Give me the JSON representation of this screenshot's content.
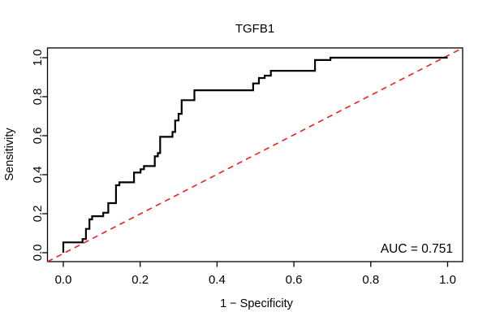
{
  "window": {
    "background": "#ffffff"
  },
  "chart_data": {
    "type": "line",
    "subtype": "roc_step_curve",
    "title": "TGFB1",
    "xlabel": "1 − Specificity",
    "ylabel": "Sensitivity",
    "xlim": [
      0,
      1
    ],
    "ylim": [
      0,
      1
    ],
    "xtick_labels": [
      "0.0",
      "0.2",
      "0.4",
      "0.6",
      "0.8",
      "1.0"
    ],
    "ytick_labels": [
      "0.0",
      "0.2",
      "0.4",
      "0.6",
      "0.8",
      "1.0"
    ],
    "grid": false,
    "legend": "none",
    "annotation": {
      "text": "AUC = 0.751",
      "corner": "bottom-right"
    },
    "auc": 0.751,
    "colors": {
      "curve": "#000000",
      "reference": "#EE2020",
      "box": "#000000",
      "text": "#000000"
    },
    "reference_line": {
      "style": "dashed",
      "from": [
        0,
        0
      ],
      "to": [
        1,
        1
      ]
    },
    "series": [
      {
        "name": "ROC curve",
        "style": "solid",
        "points": [
          [
            0.0,
            0.0
          ],
          [
            0.0,
            0.053
          ],
          [
            0.05,
            0.053
          ],
          [
            0.05,
            0.07
          ],
          [
            0.059,
            0.07
          ],
          [
            0.059,
            0.122
          ],
          [
            0.068,
            0.122
          ],
          [
            0.068,
            0.171
          ],
          [
            0.075,
            0.171
          ],
          [
            0.075,
            0.187
          ],
          [
            0.104,
            0.187
          ],
          [
            0.104,
            0.205
          ],
          [
            0.117,
            0.205
          ],
          [
            0.117,
            0.254
          ],
          [
            0.137,
            0.254
          ],
          [
            0.137,
            0.346
          ],
          [
            0.146,
            0.346
          ],
          [
            0.146,
            0.361
          ],
          [
            0.184,
            0.361
          ],
          [
            0.184,
            0.411
          ],
          [
            0.201,
            0.411
          ],
          [
            0.201,
            0.428
          ],
          [
            0.21,
            0.428
          ],
          [
            0.21,
            0.444
          ],
          [
            0.238,
            0.444
          ],
          [
            0.238,
            0.494
          ],
          [
            0.246,
            0.494
          ],
          [
            0.246,
            0.511
          ],
          [
            0.252,
            0.511
          ],
          [
            0.252,
            0.594
          ],
          [
            0.284,
            0.594
          ],
          [
            0.284,
            0.619
          ],
          [
            0.291,
            0.619
          ],
          [
            0.291,
            0.678
          ],
          [
            0.3,
            0.678
          ],
          [
            0.3,
            0.712
          ],
          [
            0.308,
            0.712
          ],
          [
            0.308,
            0.782
          ],
          [
            0.341,
            0.782
          ],
          [
            0.341,
            0.833
          ],
          [
            0.494,
            0.833
          ],
          [
            0.494,
            0.868
          ],
          [
            0.509,
            0.868
          ],
          [
            0.509,
            0.896
          ],
          [
            0.524,
            0.896
          ],
          [
            0.524,
            0.908
          ],
          [
            0.54,
            0.908
          ],
          [
            0.54,
            0.933
          ],
          [
            0.655,
            0.933
          ],
          [
            0.655,
            0.988
          ],
          [
            0.695,
            0.988
          ],
          [
            0.695,
            1.0
          ],
          [
            1.0,
            1.0
          ]
        ]
      }
    ]
  }
}
